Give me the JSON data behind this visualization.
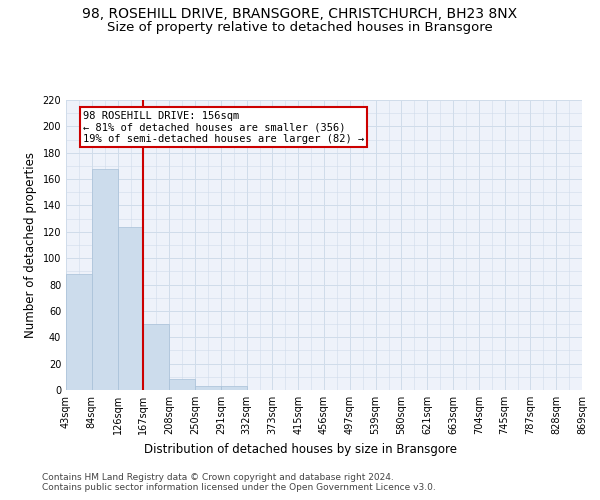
{
  "title": "98, ROSEHILL DRIVE, BRANSGORE, CHRISTCHURCH, BH23 8NX",
  "subtitle": "Size of property relative to detached houses in Bransgore",
  "xlabel": "Distribution of detached houses by size in Bransgore",
  "ylabel": "Number of detached properties",
  "bin_labels": [
    "43sqm",
    "84sqm",
    "126sqm",
    "167sqm",
    "208sqm",
    "250sqm",
    "291sqm",
    "332sqm",
    "373sqm",
    "415sqm",
    "456sqm",
    "497sqm",
    "539sqm",
    "580sqm",
    "621sqm",
    "663sqm",
    "704sqm",
    "745sqm",
    "787sqm",
    "828sqm",
    "869sqm"
  ],
  "bar_values": [
    88,
    168,
    124,
    50,
    8,
    3,
    3,
    0,
    0,
    0,
    0,
    0,
    0,
    0,
    0,
    0,
    0,
    0,
    0,
    0
  ],
  "bar_color": "#ccdcec",
  "bar_edge_color": "#a8c0d8",
  "grid_color": "#d0dcea",
  "background_color": "#eef2fa",
  "vline_x": 2.5,
  "vline_color": "#cc0000",
  "annotation_text": "98 ROSEHILL DRIVE: 156sqm\n← 81% of detached houses are smaller (356)\n19% of semi-detached houses are larger (82) →",
  "annotation_box_color": "#cc0000",
  "ylim": [
    0,
    220
  ],
  "yticks": [
    0,
    20,
    40,
    60,
    80,
    100,
    120,
    140,
    160,
    180,
    200,
    220
  ],
  "footer_text": "Contains HM Land Registry data © Crown copyright and database right 2024.\nContains public sector information licensed under the Open Government Licence v3.0.",
  "title_fontsize": 10,
  "subtitle_fontsize": 9.5,
  "label_fontsize": 8.5,
  "tick_fontsize": 7,
  "annotation_fontsize": 7.5,
  "footer_fontsize": 6.5
}
